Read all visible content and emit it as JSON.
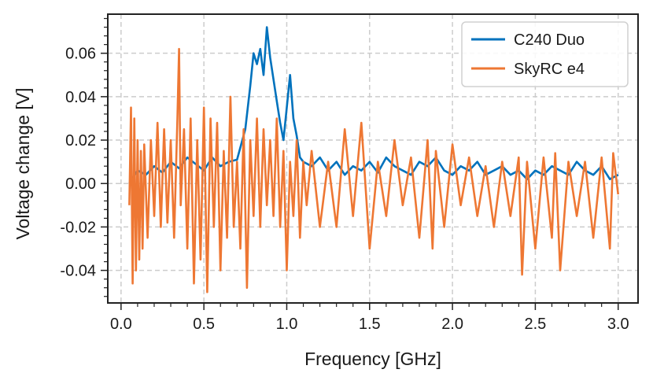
{
  "chart_data": {
    "type": "line",
    "xlabel": "Frequency [GHz]",
    "ylabel": "Voltage change [V]",
    "xlim": [
      -0.08,
      3.12
    ],
    "ylim": [
      -0.055,
      0.078
    ],
    "x_ticks": [
      0.0,
      0.5,
      1.0,
      1.5,
      2.0,
      2.5,
      3.0
    ],
    "x_tick_labels": [
      "0.0",
      "0.5",
      "1.0",
      "1.5",
      "2.0",
      "2.5",
      "3.0"
    ],
    "y_ticks": [
      -0.04,
      -0.02,
      0.0,
      0.02,
      0.04,
      0.06
    ],
    "y_tick_labels": [
      "-0.04",
      "-0.02",
      "0.00",
      "0.02",
      "0.04",
      "0.06"
    ],
    "grid": true,
    "legend_position": "top-right",
    "series": [
      {
        "name": "C240 Duo",
        "color": "#0072BD",
        "x": [
          0.05,
          0.1,
          0.15,
          0.2,
          0.25,
          0.3,
          0.35,
          0.4,
          0.45,
          0.5,
          0.55,
          0.6,
          0.65,
          0.7,
          0.75,
          0.78,
          0.8,
          0.82,
          0.84,
          0.86,
          0.88,
          0.9,
          0.92,
          0.94,
          0.96,
          0.98,
          1.0,
          1.02,
          1.04,
          1.06,
          1.08,
          1.1,
          1.15,
          1.2,
          1.25,
          1.3,
          1.35,
          1.4,
          1.45,
          1.5,
          1.55,
          1.6,
          1.65,
          1.7,
          1.75,
          1.8,
          1.85,
          1.9,
          1.95,
          2.0,
          2.05,
          2.1,
          2.15,
          2.2,
          2.25,
          2.3,
          2.35,
          2.4,
          2.45,
          2.5,
          2.55,
          2.6,
          2.65,
          2.7,
          2.75,
          2.8,
          2.85,
          2.9,
          2.95,
          3.0
        ],
        "y": [
          0.0,
          0.006,
          0.004,
          0.008,
          0.005,
          0.01,
          0.007,
          0.012,
          0.009,
          0.006,
          0.012,
          0.008,
          0.01,
          0.011,
          0.025,
          0.045,
          0.06,
          0.055,
          0.062,
          0.05,
          0.072,
          0.058,
          0.048,
          0.038,
          0.028,
          0.02,
          0.035,
          0.05,
          0.03,
          0.022,
          0.012,
          0.01,
          0.008,
          0.012,
          0.006,
          0.01,
          0.004,
          0.008,
          0.006,
          0.01,
          0.005,
          0.012,
          0.008,
          0.006,
          0.004,
          0.01,
          0.008,
          0.012,
          0.006,
          0.004,
          0.008,
          0.006,
          0.01,
          0.004,
          0.006,
          0.008,
          0.004,
          0.006,
          0.002,
          0.006,
          0.004,
          0.008,
          0.006,
          0.004,
          0.01,
          0.006,
          0.004,
          0.008,
          0.002,
          0.004
        ]
      },
      {
        "name": "SkyRC e4",
        "color": "#EE7733",
        "x": [
          0.05,
          0.06,
          0.07,
          0.08,
          0.09,
          0.1,
          0.11,
          0.12,
          0.13,
          0.14,
          0.16,
          0.18,
          0.2,
          0.22,
          0.24,
          0.26,
          0.28,
          0.3,
          0.32,
          0.34,
          0.35,
          0.36,
          0.38,
          0.4,
          0.42,
          0.44,
          0.46,
          0.48,
          0.5,
          0.52,
          0.54,
          0.56,
          0.58,
          0.6,
          0.62,
          0.64,
          0.66,
          0.68,
          0.7,
          0.72,
          0.74,
          0.76,
          0.78,
          0.8,
          0.82,
          0.84,
          0.86,
          0.88,
          0.9,
          0.92,
          0.94,
          0.96,
          0.98,
          1.0,
          1.02,
          1.04,
          1.06,
          1.08,
          1.1,
          1.12,
          1.15,
          1.2,
          1.25,
          1.3,
          1.35,
          1.4,
          1.45,
          1.5,
          1.55,
          1.6,
          1.65,
          1.7,
          1.75,
          1.8,
          1.85,
          1.88,
          1.9,
          1.95,
          2.0,
          2.05,
          2.1,
          2.15,
          2.2,
          2.25,
          2.3,
          2.35,
          2.4,
          2.42,
          2.45,
          2.5,
          2.55,
          2.6,
          2.62,
          2.65,
          2.7,
          2.75,
          2.8,
          2.85,
          2.9,
          2.95,
          2.97,
          3.0
        ],
        "y": [
          -0.01,
          0.035,
          -0.046,
          0.03,
          -0.04,
          0.02,
          -0.035,
          0.015,
          -0.03,
          0.018,
          -0.025,
          0.02,
          -0.015,
          0.028,
          -0.02,
          0.025,
          -0.018,
          0.02,
          -0.025,
          0.03,
          0.062,
          -0.01,
          0.025,
          -0.03,
          0.03,
          -0.046,
          0.02,
          -0.035,
          0.035,
          -0.05,
          0.03,
          -0.02,
          0.028,
          -0.04,
          0.015,
          -0.025,
          0.04,
          -0.02,
          0.01,
          -0.03,
          0.025,
          -0.048,
          0.02,
          -0.015,
          0.03,
          -0.02,
          0.025,
          -0.01,
          0.02,
          -0.015,
          0.03,
          -0.02,
          0.015,
          -0.04,
          0.01,
          -0.015,
          0.02,
          -0.025,
          0.01,
          -0.01,
          0.015,
          -0.02,
          0.01,
          -0.02,
          0.025,
          -0.015,
          0.028,
          -0.03,
          0.01,
          -0.015,
          0.02,
          -0.01,
          0.012,
          -0.025,
          0.02,
          -0.03,
          0.015,
          -0.02,
          0.018,
          -0.01,
          0.012,
          -0.015,
          0.008,
          -0.02,
          0.01,
          -0.015,
          0.012,
          -0.042,
          0.01,
          -0.03,
          0.012,
          -0.025,
          0.014,
          -0.04,
          0.01,
          -0.015,
          0.01,
          -0.025,
          0.012,
          -0.03,
          0.014,
          -0.005
        ]
      }
    ]
  }
}
